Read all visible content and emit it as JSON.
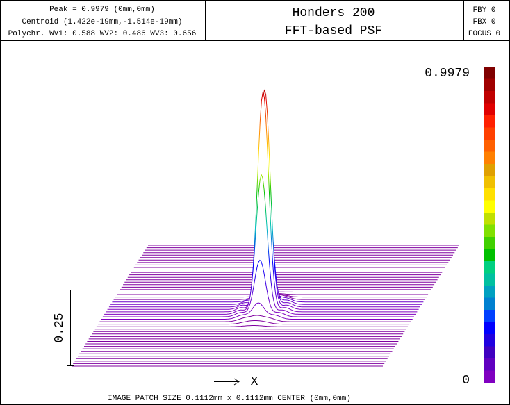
{
  "header": {
    "info": [
      "Peak = 0.9979 (0mm,0mm)",
      "Centroid (1.422e-19mm,-1.514e-19mm)",
      "Polychr. WV1: 0.588 WV2: 0.486 WV3: 0.656"
    ],
    "title": [
      "Honders 200",
      "FFT-based PSF"
    ],
    "settings": [
      "FBY 0",
      "FBX 0",
      "FOCUS 0"
    ]
  },
  "colorbar": {
    "max_label": "0.9979",
    "min_label": "0"
  },
  "scale_label": "0.25",
  "axis_label": "X",
  "footer": "IMAGE PATCH SIZE 0.1112mm x 0.1112mm    CENTER (0mm,0mm)"
}
